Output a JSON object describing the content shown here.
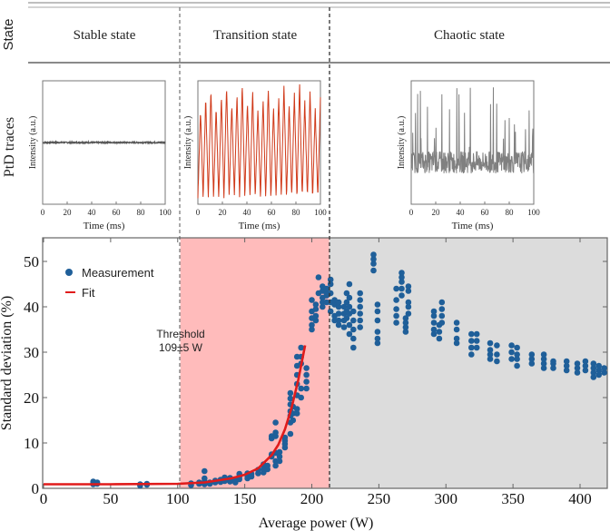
{
  "header": {
    "row_label_state": "State",
    "row_label_traces": "PtD traces",
    "states": [
      {
        "label": "Stable state"
      },
      {
        "label": "Transition state"
      },
      {
        "label": "Chaotic state"
      }
    ]
  },
  "insets": [
    {
      "name": "stable",
      "xlabel": "Time (ms)",
      "ylabel": "Intensity (a.u.)",
      "xticks": [
        "0",
        "20",
        "40",
        "60",
        "80",
        "100"
      ],
      "color": "#555555",
      "behavior": "flat"
    },
    {
      "name": "transition",
      "xlabel": "Time (ms)",
      "ylabel": "Intensity (a.u.)",
      "xticks": [
        "0",
        "20",
        "40",
        "60",
        "80",
        "100"
      ],
      "color": "#d03a1a",
      "behavior": "periodic"
    },
    {
      "name": "chaotic",
      "xlabel": "Time (ms)",
      "ylabel": "Intensity (a.u.)",
      "xticks": [
        "0",
        "20",
        "40",
        "60",
        "80",
        "100"
      ],
      "color": "#808080",
      "behavior": "chaotic"
    }
  ],
  "chart_data": {
    "type": "scatter",
    "title": "",
    "xlabel": "Average power (W)",
    "ylabel": "Standard deviation (%)",
    "xlim": [
      0,
      420
    ],
    "ylim": [
      0,
      55
    ],
    "xticks": [
      0,
      50,
      100,
      150,
      200,
      250,
      300,
      350,
      400
    ],
    "yticks": [
      0,
      10,
      20,
      30,
      40,
      50
    ],
    "grid": false,
    "legend": {
      "position": "top-left",
      "entries": [
        {
          "label": "Measurement",
          "marker": "circle",
          "color": "#1f5f99"
        },
        {
          "label": "Fit",
          "marker": "line",
          "color": "#e01b1b"
        }
      ]
    },
    "regions": [
      {
        "name": "stable",
        "x": [
          0,
          102
        ],
        "color": "#ffffff"
      },
      {
        "name": "transition",
        "x": [
          102,
          213
        ],
        "color": "#ffbbbb"
      },
      {
        "name": "chaotic",
        "x": [
          213,
          420
        ],
        "color": "#dcdcdc"
      }
    ],
    "annotation": {
      "text_line1": "Threshold",
      "text_line2": "109±5 W",
      "x": 100,
      "y": 32
    },
    "measurement_clusters": [
      {
        "x": 37,
        "y": [
          1.2,
          1.5,
          0.9
        ]
      },
      {
        "x": 40,
        "y": [
          1.0,
          1.3
        ]
      },
      {
        "x": 72,
        "y": [
          0.6,
          0.9
        ]
      },
      {
        "x": 77,
        "y": [
          0.8,
          1.0
        ]
      },
      {
        "x": 110,
        "y": [
          0.7,
          1.1
        ]
      },
      {
        "x": 116,
        "y": [
          1.0,
          1.3
        ]
      },
      {
        "x": 120,
        "y": [
          0.9,
          1.5,
          2.2,
          3.8
        ]
      },
      {
        "x": 124,
        "y": [
          1.0,
          1.3
        ]
      },
      {
        "x": 128,
        "y": [
          1.3,
          1.7
        ]
      },
      {
        "x": 132,
        "y": [
          1.4,
          1.9
        ]
      },
      {
        "x": 135,
        "y": [
          1.6,
          2.1,
          2.4
        ]
      },
      {
        "x": 139,
        "y": [
          1.5,
          1.9,
          2.3
        ]
      },
      {
        "x": 143,
        "y": [
          1.3,
          2.0
        ]
      },
      {
        "x": 146,
        "y": [
          2.0,
          2.6,
          3.2
        ]
      },
      {
        "x": 152,
        "y": [
          2.2,
          2.8,
          3.3
        ]
      },
      {
        "x": 155,
        "y": [
          2.6,
          3.2
        ]
      },
      {
        "x": 160,
        "y": [
          3.3,
          4.1
        ]
      },
      {
        "x": 164,
        "y": [
          3.5,
          4.3,
          5.3
        ]
      },
      {
        "x": 167,
        "y": [
          4.2,
          5.0
        ]
      },
      {
        "x": 170,
        "y": [
          7.0,
          7.5,
          11.0,
          11.5
        ]
      },
      {
        "x": 173,
        "y": [
          5.0,
          6.0,
          7.8,
          11.5,
          12.3,
          14.5
        ]
      },
      {
        "x": 176,
        "y": [
          6.0,
          7.0,
          8.0
        ]
      },
      {
        "x": 180,
        "y": [
          9.0,
          9.8,
          10.5,
          11.2
        ]
      },
      {
        "x": 184,
        "y": [
          12.0,
          14.5,
          16.0,
          17.0,
          18.5,
          19.8,
          21.0
        ]
      },
      {
        "x": 186,
        "y": [
          15.0,
          16.5,
          18.0
        ]
      },
      {
        "x": 189,
        "y": [
          16.5,
          17.5,
          20.5,
          23.0,
          25.0,
          27.0,
          29.0
        ]
      },
      {
        "x": 192,
        "y": [
          20.0,
          22.0,
          27.5,
          29.0,
          31.0
        ]
      },
      {
        "x": 196,
        "y": [
          22.0,
          23.5,
          25.0,
          26.5
        ]
      },
      {
        "x": 200,
        "y": [
          35.0,
          36.0,
          37.5,
          39.0,
          41.5
        ]
      },
      {
        "x": 203,
        "y": [
          37.0,
          38.0,
          39.5,
          40.5
        ]
      },
      {
        "x": 205,
        "y": [
          43.0,
          46.5
        ]
      },
      {
        "x": 208,
        "y": [
          40.0,
          41.0,
          42.0,
          43.5,
          44.5
        ]
      },
      {
        "x": 211,
        "y": [
          41.0,
          42.5,
          43.0,
          44.0
        ]
      },
      {
        "x": 214,
        "y": [
          39.0,
          41.0,
          43.0,
          45.0,
          46.0
        ]
      },
      {
        "x": 217,
        "y": [
          37.0,
          38.0,
          40.5,
          41.5
        ]
      },
      {
        "x": 220,
        "y": [
          36.0,
          37.0,
          38.5,
          40.0,
          41.0
        ]
      },
      {
        "x": 224,
        "y": [
          35.5,
          37.0,
          38.5,
          40.0
        ]
      },
      {
        "x": 226,
        "y": [
          37.5,
          39.0,
          41.0,
          43.0
        ]
      },
      {
        "x": 228,
        "y": [
          34.0,
          36.0,
          38.5,
          40.0,
          42.0,
          45.0
        ]
      },
      {
        "x": 231,
        "y": [
          31.0,
          33.0,
          35.0,
          37.0,
          39.0
        ]
      },
      {
        "x": 236,
        "y": [
          35.5,
          37.0,
          38.5,
          40.0,
          41.5,
          43.0
        ]
      },
      {
        "x": 249,
        "y": [
          32.0,
          33.0,
          34.5,
          37.0,
          39.0,
          40.5
        ]
      },
      {
        "x": 246,
        "y": [
          48.0,
          49.5,
          50.5,
          51.5
        ]
      },
      {
        "x": 263,
        "y": [
          36.5,
          38.0,
          39.5,
          41.5,
          44.0
        ]
      },
      {
        "x": 267,
        "y": [
          42.5,
          44.0,
          45.5,
          46.5,
          47.5
        ]
      },
      {
        "x": 272,
        "y": [
          38.5,
          40.0,
          41.0,
          43.5,
          44.5
        ]
      },
      {
        "x": 270,
        "y": [
          34.5,
          35.5,
          36.5,
          37.5
        ]
      },
      {
        "x": 291,
        "y": [
          34.0,
          35.0,
          36.5,
          38.0,
          39.0
        ]
      },
      {
        "x": 295,
        "y": [
          33.0,
          34.5,
          36.0
        ]
      },
      {
        "x": 297,
        "y": [
          36.5,
          38.0,
          39.5,
          41.0
        ]
      },
      {
        "x": 308,
        "y": [
          32.0,
          33.0,
          35.0,
          36.5
        ]
      },
      {
        "x": 319,
        "y": [
          29.5,
          31.0,
          32.5,
          34.0
        ]
      },
      {
        "x": 323,
        "y": [
          31.0,
          32.5,
          34.0
        ]
      },
      {
        "x": 333,
        "y": [
          28.5,
          29.5,
          30.5,
          32.0
        ]
      },
      {
        "x": 338,
        "y": [
          28.0,
          29.5,
          31.5
        ]
      },
      {
        "x": 349,
        "y": [
          28.5,
          30.0,
          31.5
        ]
      },
      {
        "x": 353,
        "y": [
          27.0,
          28.5,
          29.5,
          31.0
        ]
      },
      {
        "x": 364,
        "y": [
          27.5,
          28.5,
          29.5
        ]
      },
      {
        "x": 373,
        "y": [
          26.5,
          27.5,
          28.5,
          29.5
        ]
      },
      {
        "x": 380,
        "y": [
          26.5,
          27.5,
          28.0
        ]
      },
      {
        "x": 390,
        "y": [
          26.0,
          27.0,
          28.0
        ]
      },
      {
        "x": 398,
        "y": [
          25.5,
          26.5,
          27.5
        ]
      },
      {
        "x": 404,
        "y": [
          26.0,
          27.0,
          28.0
        ]
      },
      {
        "x": 410,
        "y": [
          24.5,
          25.5,
          26.5,
          27.5
        ]
      },
      {
        "x": 414,
        "y": [
          25.0,
          26.0,
          27.0
        ]
      },
      {
        "x": 418,
        "y": [
          25.5,
          26.5
        ]
      }
    ],
    "fit": {
      "model": "exponential",
      "x_range": [
        0,
        195
      ],
      "points": [
        [
          0,
          0.9
        ],
        [
          50,
          0.9
        ],
        [
          100,
          1.0
        ],
        [
          120,
          1.3
        ],
        [
          140,
          2.2
        ],
        [
          150,
          3.0
        ],
        [
          160,
          4.4
        ],
        [
          170,
          7.3
        ],
        [
          175,
          9.6
        ],
        [
          180,
          13.0
        ],
        [
          185,
          17.8
        ],
        [
          190,
          24.0
        ],
        [
          195,
          31.5
        ]
      ]
    }
  }
}
